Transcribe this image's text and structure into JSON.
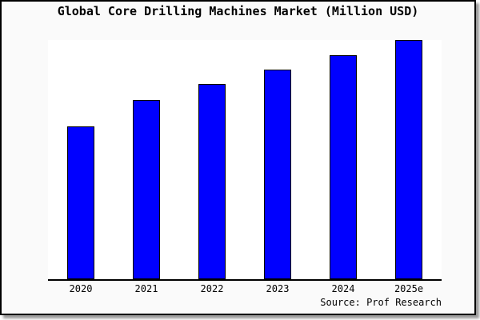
{
  "colors": {
    "bar_fill": "#0000ff",
    "bar_border": "#000000",
    "page_background": "#fafafa",
    "plot_background": "#ffffff",
    "frame_border": "#000000",
    "axis_line": "#000000",
    "shadow": "#9a9a9a"
  },
  "chart_data": {
    "type": "bar",
    "title": "Global Core Drilling Machines Market (Million USD)",
    "categories": [
      "2020",
      "2021",
      "2022",
      "2023",
      "2024",
      "2025e"
    ],
    "values": [
      64,
      75,
      81.5,
      87.5,
      93.5,
      100
    ],
    "ylim": [
      0,
      100
    ],
    "xlabel": "",
    "ylabel": "",
    "grid": false,
    "legend": false,
    "y_axis_visible": false,
    "note": "No numeric y-axis is shown in the chart; values are relative bar heights expressed as percent of the tallest (2025e) bar",
    "source": "Source: Prof Research"
  }
}
